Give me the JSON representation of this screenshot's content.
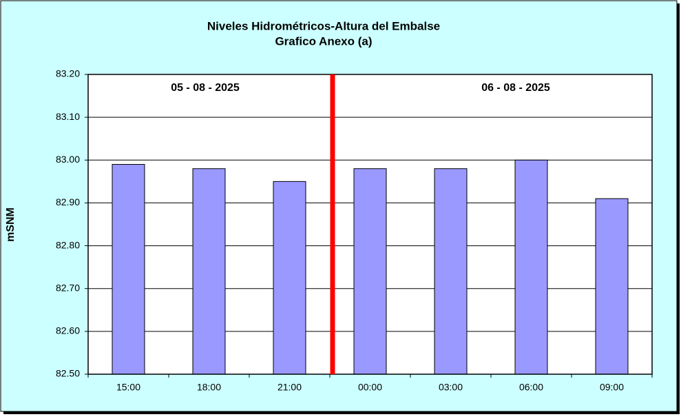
{
  "chart_data": {
    "type": "bar",
    "title": "Niveles Hidrométricos-Altura del Embalse",
    "subtitle": "Grafico Anexo (a)",
    "y_label": "mSNM",
    "annotations": [
      "05 - 08 - 2025",
      "06 - 08 - 2025"
    ],
    "categories": [
      "15:00",
      "18:00",
      "21:00",
      "00:00",
      "03:00",
      "06:00",
      "09:00"
    ],
    "values": [
      82.99,
      82.98,
      82.95,
      82.98,
      82.98,
      83.0,
      82.91
    ],
    "color": "#9999ff",
    "ylim": [
      82.5,
      83.2
    ],
    "yticks": [
      {
        "value": 82.5,
        "label": "82.50"
      },
      {
        "value": 82.6,
        "label": "82.60"
      },
      {
        "value": 82.7,
        "label": "82.70"
      },
      {
        "value": 82.8,
        "label": "82.80"
      },
      {
        "value": 82.9,
        "label": "82.90"
      },
      {
        "value": 83.0,
        "label": "83.00"
      },
      {
        "value": 83.1,
        "label": "83.10"
      },
      {
        "value": 83.2,
        "label": "83.20"
      }
    ],
    "grid": true
  }
}
